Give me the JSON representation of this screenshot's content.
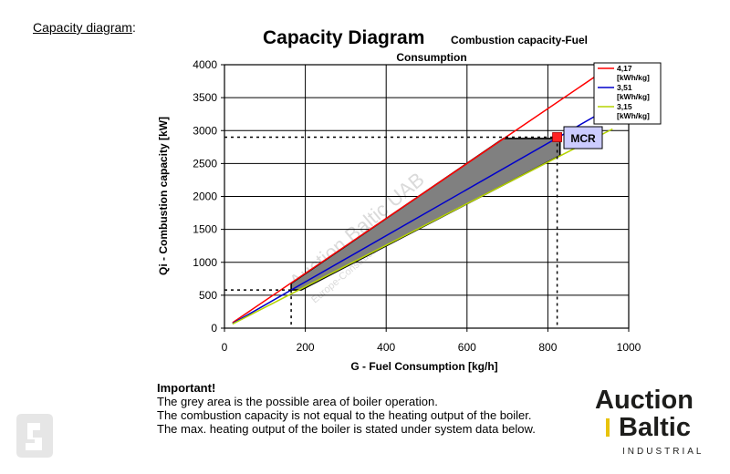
{
  "heading": {
    "label": "Capacity diagram",
    "colon": ":"
  },
  "chart_data": {
    "type": "line",
    "title": "Capacity Diagram",
    "subtitle_line1": "Combustion capacity-Fuel",
    "subtitle_line2": "Consumption",
    "xlabel": "G - Fuel Consumption [kg/h]",
    "ylabel": "Qi - Combustion capacity [kW]",
    "xlim": [
      0,
      1000
    ],
    "ylim": [
      0,
      4000
    ],
    "xticks": [
      0,
      200,
      400,
      600,
      800,
      1000
    ],
    "yticks": [
      0,
      500,
      1000,
      1500,
      2000,
      2500,
      3000,
      3500,
      4000
    ],
    "grid": true,
    "legend_position": "top-right",
    "series": [
      {
        "name": "4,17 [kWh/kg]",
        "color": "#ff0000",
        "x": [
          20,
          960
        ],
        "y": [
          83,
          4000
        ]
      },
      {
        "name": "3,51 [kWh/kg]",
        "color": "#0000cc",
        "x": [
          20,
          960
        ],
        "y": [
          70,
          3370
        ]
      },
      {
        "name": "3,15 [kWh/kg]",
        "color": "#b5d300",
        "x": [
          20,
          960
        ],
        "y": [
          63,
          3024
        ]
      }
    ],
    "operation_area": {
      "fill": "#808080",
      "points": [
        [
          165,
          580
        ],
        [
          165,
          680
        ],
        [
          690,
          2880
        ],
        [
          830,
          2880
        ],
        [
          830,
          2620
        ],
        [
          190,
          580
        ]
      ]
    },
    "guides": [
      {
        "x": 823,
        "y": 2900
      },
      {
        "x": 165,
        "y": 580
      }
    ],
    "marker": {
      "x": 823,
      "y": 2900,
      "label": "MCR",
      "color": "#ff2222"
    }
  },
  "notes": {
    "important": "Important!",
    "line1": "The grey area is the possible area of boiler operation.",
    "line2": "The combustion capacity is not equal to the heating output of the boiler.",
    "line3": "The max. heating output of the boiler is stated under system data below."
  },
  "brand": {
    "line1": "Auction",
    "line2": "Baltic",
    "sub": "INDUSTRIAL",
    "accent": "#e8c30c"
  },
  "watermark": {
    "line1": "Auction Baltic UAB",
    "line2": "Europe-Construction-Equipment.com"
  }
}
